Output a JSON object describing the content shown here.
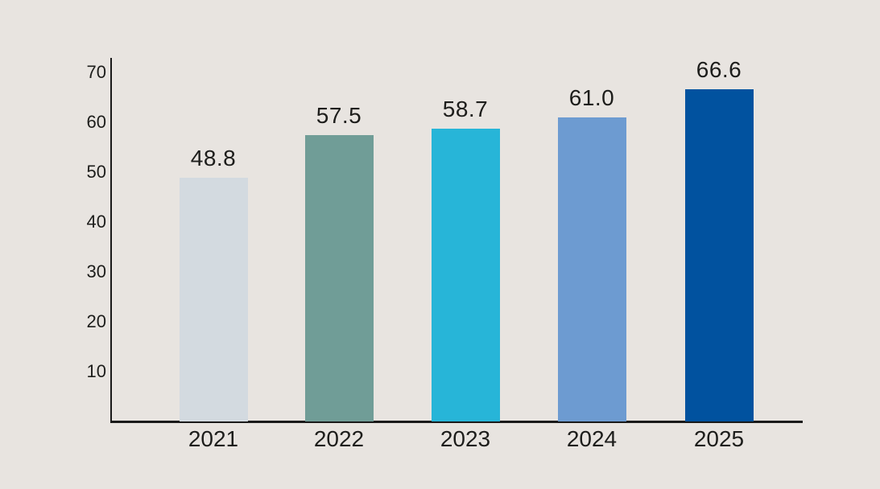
{
  "chart_data": {
    "type": "bar",
    "categories": [
      "2021",
      "2022",
      "2023",
      "2024",
      "2025"
    ],
    "values": [
      48.8,
      57.5,
      58.7,
      61.0,
      66.6
    ],
    "value_labels": [
      "48.8",
      "57.5",
      "58.7",
      "61.0",
      "66.6"
    ],
    "bar_colors": [
      "#d3dae0",
      "#709d97",
      "#27b5d8",
      "#6d9bd1",
      "#01529f"
    ],
    "title": "",
    "xlabel": "",
    "ylabel": "",
    "ylim": [
      0,
      70
    ],
    "yticks": [
      10,
      20,
      30,
      40,
      50,
      60,
      70
    ],
    "grid": false,
    "legend": false
  },
  "colors": {
    "background": "#e8e4e0",
    "axis": "#1a1a1a",
    "text": "#1d1d1b"
  }
}
